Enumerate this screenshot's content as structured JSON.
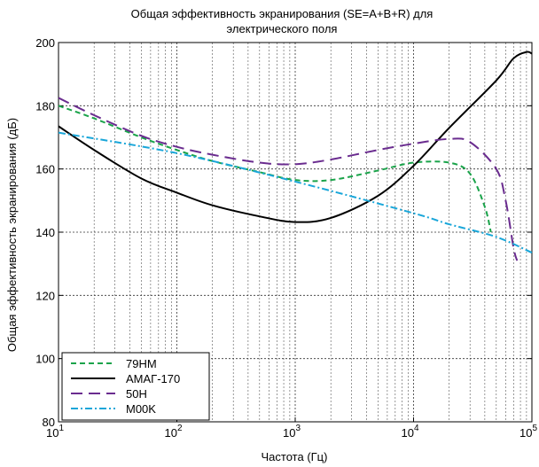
{
  "chart_data": {
    "type": "line",
    "title_line1": "Общая эффективность экранирования (SE=A+B+R) для",
    "title_line2": "электрического поля",
    "xlabel": "Частота (Гц)",
    "ylabel": "Общая эффективность экранирования (дБ)",
    "xscale": "log",
    "xlim": [
      10,
      100000
    ],
    "ylim": [
      80,
      200
    ],
    "grid": true,
    "legend_position": "bottom-left",
    "x_ticks": [
      {
        "base": "10",
        "exp": "1"
      },
      {
        "base": "10",
        "exp": "2"
      },
      {
        "base": "10",
        "exp": "3"
      },
      {
        "base": "10",
        "exp": "4"
      },
      {
        "base": "10",
        "exp": "5"
      }
    ],
    "y_ticks": [
      "80",
      "100",
      "120",
      "140",
      "160",
      "180",
      "200"
    ],
    "series": [
      {
        "name": "79HM",
        "color": "#1aa34a",
        "dash": "dashed",
        "points": [
          [
            10,
            180
          ],
          [
            20,
            176
          ],
          [
            50,
            170
          ],
          [
            100,
            166
          ],
          [
            200,
            162.5
          ],
          [
            500,
            159
          ],
          [
            1000,
            156.5
          ],
          [
            2000,
            156.5
          ],
          [
            5000,
            159.5
          ],
          [
            10000,
            162
          ],
          [
            20000,
            162
          ],
          [
            30000,
            158.5
          ],
          [
            40000,
            148
          ],
          [
            45000,
            140
          ]
        ]
      },
      {
        "name": "AMAГ-170",
        "color": "#000000",
        "dash": "solid",
        "points": [
          [
            10,
            173.5
          ],
          [
            20,
            166
          ],
          [
            50,
            157
          ],
          [
            100,
            152.5
          ],
          [
            200,
            148.5
          ],
          [
            500,
            145
          ],
          [
            1000,
            143.2
          ],
          [
            2000,
            144.5
          ],
          [
            5000,
            151.5
          ],
          [
            10000,
            161
          ],
          [
            20000,
            173
          ],
          [
            50000,
            188
          ],
          [
            70000,
            195
          ],
          [
            90000,
            197
          ],
          [
            100000,
            196.5
          ]
        ]
      },
      {
        "name": "50H",
        "color": "#6a2c8f",
        "dash": "longdash",
        "points": [
          [
            10,
            182.5
          ],
          [
            20,
            177
          ],
          [
            50,
            170.5
          ],
          [
            100,
            167
          ],
          [
            200,
            164.5
          ],
          [
            500,
            162
          ],
          [
            1000,
            161.5
          ],
          [
            2000,
            163
          ],
          [
            5000,
            166
          ],
          [
            10000,
            168
          ],
          [
            20000,
            169.5
          ],
          [
            30000,
            168.5
          ],
          [
            50000,
            160
          ],
          [
            60000,
            150
          ],
          [
            70000,
            135
          ],
          [
            75000,
            131
          ]
        ]
      },
      {
        "name": "M00K",
        "color": "#19a6d9",
        "dash": "dashdot",
        "points": [
          [
            10,
            171.5
          ],
          [
            100,
            165
          ],
          [
            1000,
            156
          ],
          [
            10000,
            146
          ],
          [
            20000,
            142.5
          ],
          [
            50000,
            138.5
          ],
          [
            100000,
            133.5
          ]
        ]
      }
    ]
  }
}
